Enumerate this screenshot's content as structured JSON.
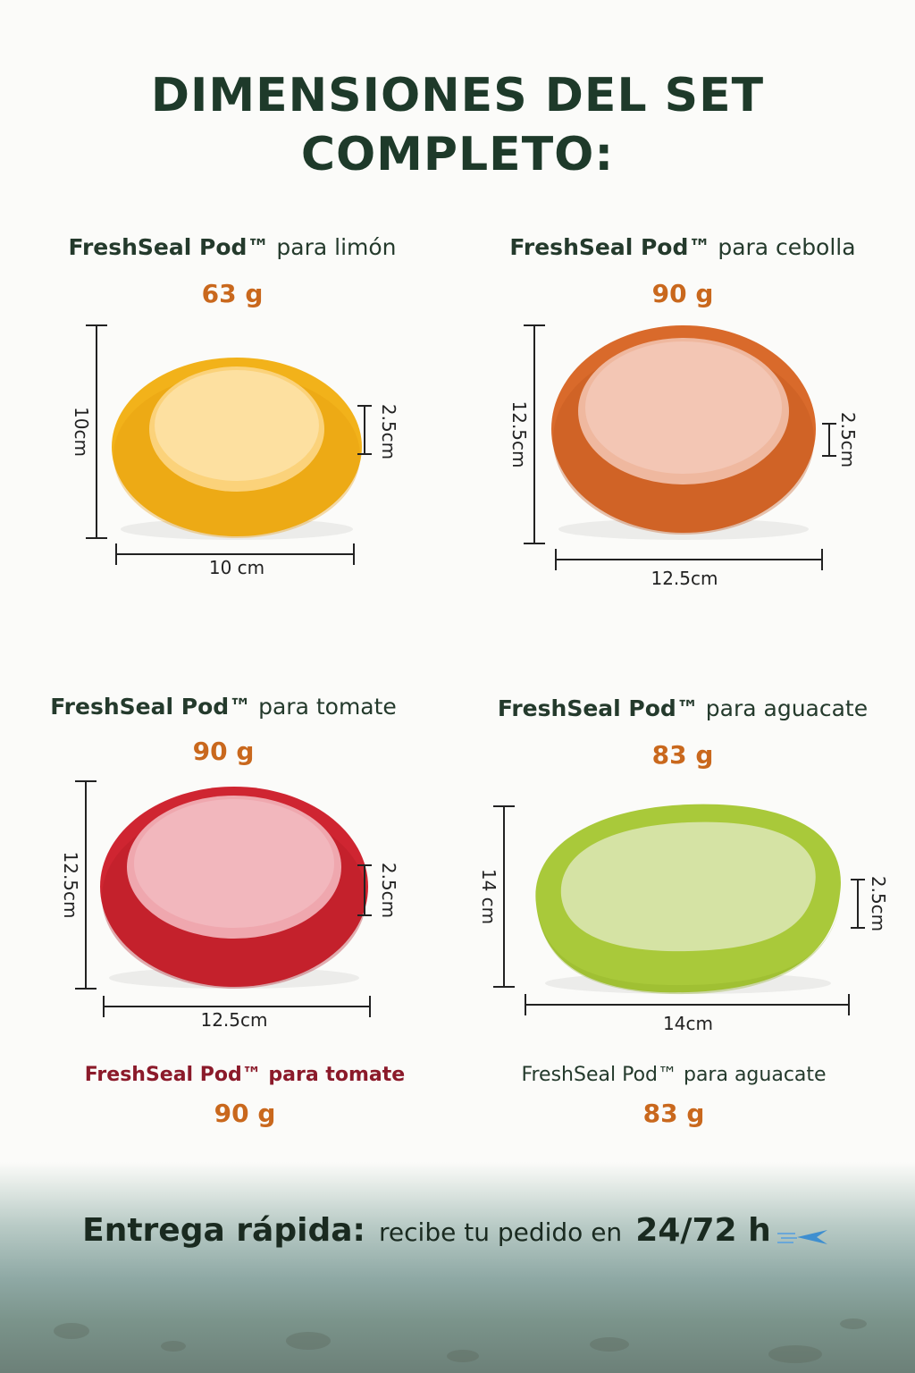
{
  "title": {
    "line1": "DIMENSIONES DEL SET",
    "line2": "COMPLETO:"
  },
  "products": [
    {
      "brand": "FreshSeal Pod™",
      "variant": "para limón",
      "weight": "63 g",
      "height_label": "10cm",
      "depth_label": "2.5cm",
      "width_label": "10 cm",
      "colors": {
        "outer": "#f2b21a",
        "inner": "#fbd27a",
        "shade": "#e49a0d"
      }
    },
    {
      "brand": "FreshSeal Pod™",
      "variant": "para cebolla",
      "weight": "90 g",
      "height_label": "12.5cm",
      "depth_label": "2.5cm",
      "width_label": "12.5cm",
      "colors": {
        "outer": "#d96a2b",
        "inner": "#efb89f",
        "shade": "#c0561c"
      }
    },
    {
      "brand": "FreshSeal Pod™",
      "variant": "para tomate",
      "weight": "90 g",
      "height_label": "12.5cm",
      "depth_label": "2.5cm",
      "width_label": "12.5cm",
      "colors": {
        "outer": "#cf2531",
        "inner": "#efa7ae",
        "shade": "#b01b26"
      }
    },
    {
      "brand": "FreshSeal Pod™",
      "variant": "para aguacate",
      "weight": "83 g",
      "height_label": "14 cm",
      "depth_label": "2.5cm",
      "width_label": "14cm",
      "colors": {
        "outer": "#a9c93a",
        "inner": "#d5e3a4",
        "shade": "#8fb028"
      }
    }
  ],
  "footer_products": [
    {
      "name": "FreshSeal Pod™ para tomate",
      "weight": "90 g",
      "color": "#8b1a2a"
    },
    {
      "name": "FreshSeal Pod™ para aguacate",
      "weight": "83 g",
      "color": "#243a2c"
    }
  ],
  "delivery": {
    "label": "Entrega rápida:",
    "text": "recibe tu pedido en",
    "hours": "24/72 h",
    "icon": "delivery-plane-icon"
  }
}
